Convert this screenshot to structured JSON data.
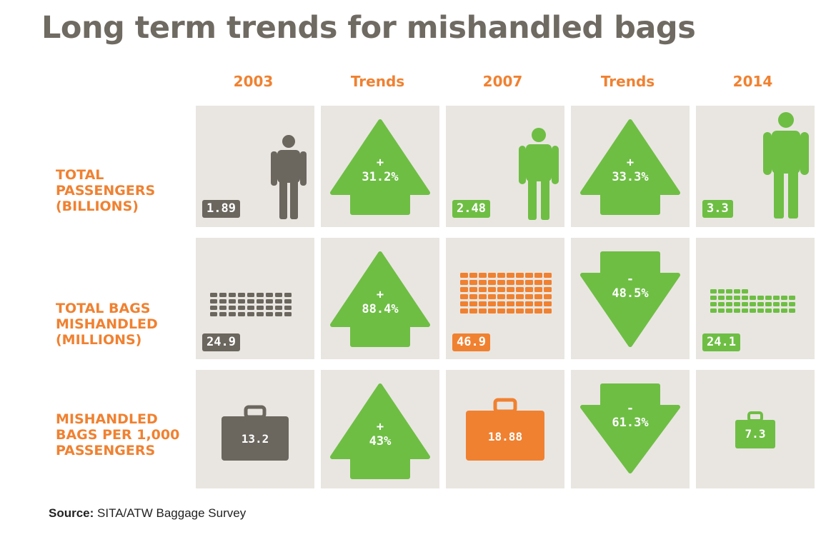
{
  "title": "Long term trends for mishandled bags",
  "colors": {
    "grey": "#6b665e",
    "green": "#6ebe44",
    "orange": "#f08131",
    "cell_bg": "#e9e6e1",
    "title": "#6f6a62"
  },
  "columns": [
    "2003",
    "Trends",
    "2007",
    "Trends",
    "2014"
  ],
  "rows": [
    {
      "label_lines": [
        "TOTAL",
        "PASSENGERS",
        "(BILLIONS)"
      ],
      "icon": "person-icon",
      "values": [
        {
          "year": "2003",
          "value": "1.89",
          "color": "grey"
        },
        {
          "year": "2007",
          "value": "2.48",
          "color": "green"
        },
        {
          "year": "2014",
          "value": "3.3",
          "color": "green"
        }
      ],
      "trends": [
        {
          "direction": "up",
          "sign": "+",
          "value": "31.2%"
        },
        {
          "direction": "up",
          "sign": "+",
          "value": "33.3%"
        }
      ]
    },
    {
      "label_lines": [
        "TOTAL BAGS",
        "MISHANDLED",
        "(MILLIONS)"
      ],
      "icon": "bag-grid-icon",
      "values": [
        {
          "year": "2003",
          "value": "24.9",
          "color": "grey"
        },
        {
          "year": "2007",
          "value": "46.9",
          "color": "orange"
        },
        {
          "year": "2014",
          "value": "24.1",
          "color": "green"
        }
      ],
      "trends": [
        {
          "direction": "up",
          "sign": "+",
          "value": "88.4%"
        },
        {
          "direction": "down",
          "sign": "-",
          "value": "48.5%"
        }
      ]
    },
    {
      "label_lines": [
        "MISHANDLED",
        "BAGS PER 1,000",
        "PASSENGERS"
      ],
      "icon": "suitcase-icon",
      "values": [
        {
          "year": "2003",
          "value": "13.2",
          "color": "grey"
        },
        {
          "year": "2007",
          "value": "18.88",
          "color": "orange"
        },
        {
          "year": "2014",
          "value": "7.3",
          "color": "green"
        }
      ],
      "trends": [
        {
          "direction": "up",
          "sign": "+",
          "value": "43%"
        },
        {
          "direction": "down",
          "sign": "-",
          "value": "61.3%"
        }
      ]
    }
  ],
  "source": {
    "label": "Source:",
    "text": "SITA/ATW Baggage Survey"
  }
}
